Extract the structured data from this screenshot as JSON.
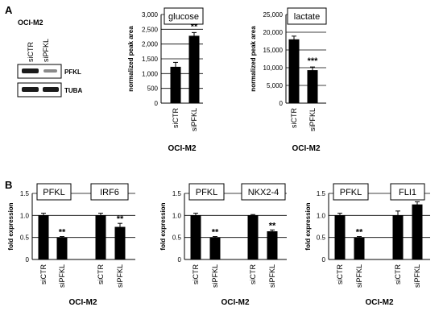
{
  "panels": {
    "A": {
      "letter": "A",
      "cell_line": "OCI-M2",
      "blot": {
        "lanes": [
          "siCTR",
          "siPFKL"
        ],
        "rows": [
          "PFKL",
          "TUBA"
        ]
      }
    },
    "B": {
      "letter": "B"
    }
  },
  "chart_data": [
    {
      "id": "glucose",
      "type": "bar",
      "title": "glucose",
      "ylabel": "normalized peak area",
      "xlabel": "OCI-M2",
      "categories": [
        "siCTR",
        "siPFKL"
      ],
      "values": [
        1230,
        2280
      ],
      "errors": [
        150,
        110
      ],
      "significance": [
        "",
        "**"
      ],
      "ylim": [
        0,
        3000
      ],
      "yticks": [
        "0",
        "500",
        "1,000",
        "1,500",
        "2,000",
        "2,500",
        "3,000"
      ],
      "color": "#000000"
    },
    {
      "id": "lactate",
      "type": "bar",
      "title": "lactate",
      "ylabel": "normalized peak area",
      "xlabel": "OCI-M2",
      "categories": [
        "siCTR",
        "siPFKL"
      ],
      "values": [
        18000,
        9300
      ],
      "errors": [
        900,
        900
      ],
      "significance": [
        "",
        "***"
      ],
      "ylim": [
        0,
        25000
      ],
      "yticks": [
        "0",
        "5,000",
        "10,000",
        "15,000",
        "20,000",
        "25,000"
      ],
      "color": "#000000"
    },
    {
      "id": "irf6",
      "type": "bar",
      "title": "",
      "groups": [
        "PFKL",
        "IRF6"
      ],
      "ylabel": "fold expression",
      "xlabel": "OCI-M2",
      "categories": [
        "siCTR",
        "siPFKL",
        "siCTR",
        "siPFKL"
      ],
      "values": [
        1.0,
        0.5,
        1.0,
        0.74
      ],
      "errors": [
        0.05,
        0.02,
        0.05,
        0.08
      ],
      "significance": [
        "",
        "**",
        "",
        "**"
      ],
      "ylim": [
        0,
        1.5
      ],
      "yticks": [
        "0",
        "0.5",
        "1.0",
        "1.5"
      ],
      "color": "#000000"
    },
    {
      "id": "nkx2-4",
      "type": "bar",
      "title": "",
      "groups": [
        "PFKL",
        "NKX2-4"
      ],
      "ylabel": "fold expression",
      "xlabel": "OCI-M2",
      "categories": [
        "siCTR",
        "siPFKL",
        "siCTR",
        "siPFKL"
      ],
      "values": [
        1.0,
        0.5,
        1.0,
        0.64
      ],
      "errors": [
        0.05,
        0.02,
        0.02,
        0.03
      ],
      "significance": [
        "",
        "**",
        "",
        "**"
      ],
      "ylim": [
        0,
        1.5
      ],
      "yticks": [
        "0",
        "0.5",
        "1.0",
        "1.5"
      ],
      "color": "#000000"
    },
    {
      "id": "fli1",
      "type": "bar",
      "title": "",
      "groups": [
        "PFKL",
        "FLI1"
      ],
      "ylabel": "fold expression",
      "xlabel": "OCI-M2",
      "categories": [
        "siCTR",
        "siPFKL",
        "siCTR",
        "siPFKL"
      ],
      "values": [
        1.0,
        0.5,
        1.0,
        1.25
      ],
      "errors": [
        0.05,
        0.02,
        0.1,
        0.06
      ],
      "significance": [
        "",
        "**",
        "",
        "*"
      ],
      "ylim": [
        0,
        1.5
      ],
      "yticks": [
        "0",
        "0.5",
        "1.0",
        "1.5"
      ],
      "color": "#000000"
    }
  ]
}
